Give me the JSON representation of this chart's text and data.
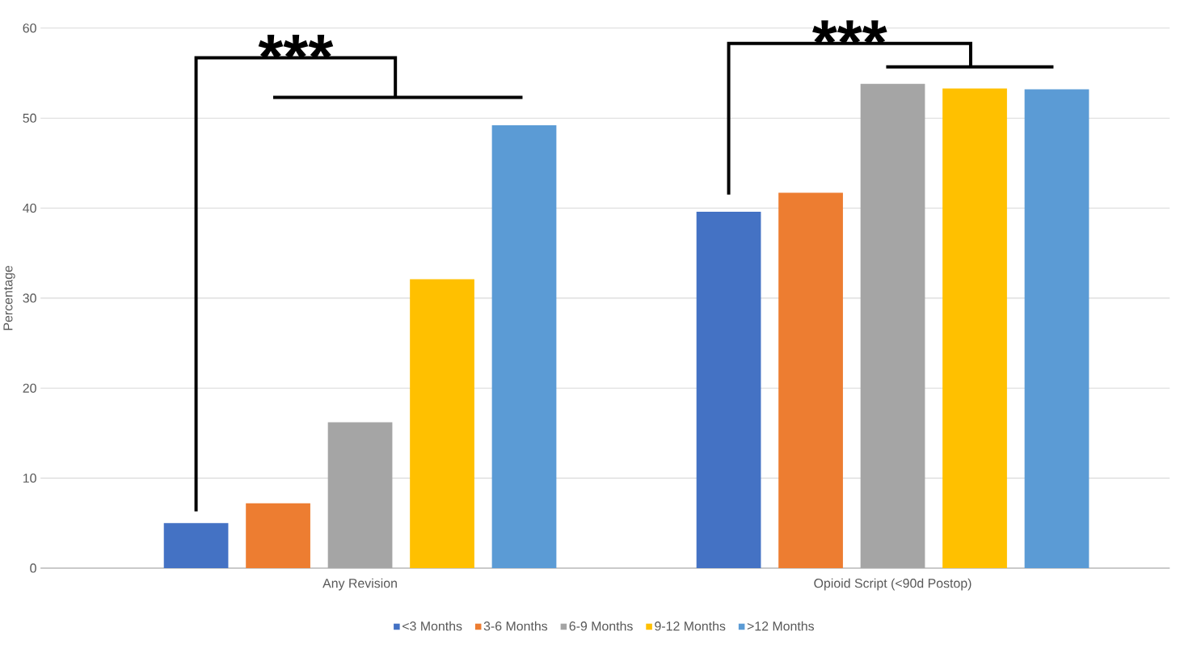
{
  "chart_data": {
    "type": "bar",
    "ylabel": "Percentage",
    "categories": [
      "Any Revision",
      "Opioid Script (<90d Postop)"
    ],
    "series": [
      {
        "name": "<3 Months",
        "color": "#4472c4",
        "values": [
          5.0,
          39.6
        ]
      },
      {
        "name": "3-6 Months",
        "color": "#ed7d31",
        "values": [
          7.2,
          41.7
        ]
      },
      {
        "name": "6-9 Months",
        "color": "#a5a5a5",
        "values": [
          16.2,
          53.8
        ]
      },
      {
        "name": "9-12 Months",
        "color": "#ffc000",
        "values": [
          32.1,
          53.3
        ]
      },
      {
        "name": ">12 Months",
        "color": "#5b9bd5",
        "values": [
          49.2,
          53.2
        ]
      }
    ],
    "ylim": [
      0,
      60
    ],
    "yticks": [
      0,
      10,
      20,
      30,
      40,
      50,
      60
    ],
    "grid": "y",
    "legend": "bottom",
    "annotations": [
      "***",
      "***"
    ]
  }
}
